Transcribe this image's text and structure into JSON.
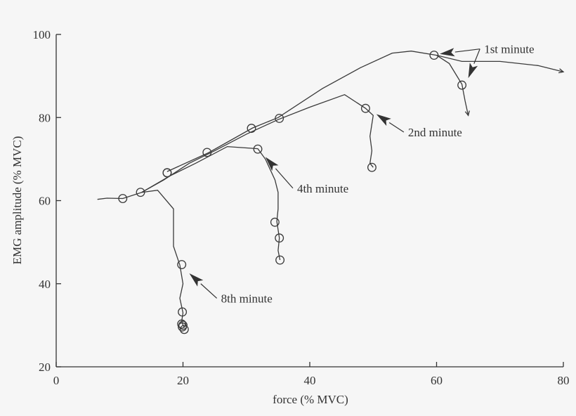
{
  "chart_data": {
    "type": "line",
    "xlabel": "force (% MVC)",
    "ylabel": "EMG amplitude (% MVC)",
    "xlim": [
      0,
      80
    ],
    "ylim": [
      20,
      100
    ],
    "xticks": [
      0,
      20,
      40,
      60,
      80
    ],
    "yticks": [
      20,
      40,
      60,
      80,
      100
    ],
    "series": [
      {
        "name": "1st minute",
        "points": [
          [
            17.5,
            67
          ],
          [
            24,
            71.5
          ],
          [
            31,
            77.5
          ],
          [
            35,
            80
          ],
          [
            42,
            87
          ],
          [
            48,
            92
          ],
          [
            53,
            95.5
          ],
          [
            56,
            96
          ],
          [
            60,
            95
          ],
          [
            64,
            93.5
          ],
          [
            70,
            93.5
          ],
          [
            76,
            92.5
          ],
          [
            80,
            91
          ]
        ],
        "markers": [
          [
            17.5,
            66.7
          ],
          [
            23.8,
            71.6
          ],
          [
            30.8,
            77.4
          ],
          [
            35.2,
            79.8
          ],
          [
            59.6,
            95
          ],
          [
            64,
            87.8
          ]
        ]
      },
      {
        "name": "1st minute (fatiguing branch)",
        "points": [
          [
            60,
            95
          ],
          [
            62,
            93
          ],
          [
            64,
            88
          ],
          [
            64.5,
            84
          ],
          [
            65,
            80.5
          ]
        ],
        "markers": []
      },
      {
        "name": "2nd minute",
        "points": [
          [
            13.5,
            62
          ],
          [
            17,
            65
          ],
          [
            21,
            69
          ],
          [
            25,
            72
          ],
          [
            30,
            76
          ],
          [
            35,
            79.5
          ],
          [
            40,
            82.5
          ],
          [
            45.5,
            85.5
          ],
          [
            48.8,
            82.2
          ],
          [
            50,
            80.5
          ],
          [
            49.5,
            75.5
          ],
          [
            49.8,
            72
          ],
          [
            49.5,
            69
          ],
          [
            50,
            68
          ]
        ],
        "markers": [
          [
            48.8,
            82.2
          ],
          [
            49.8,
            68
          ]
        ]
      },
      {
        "name": "4th minute",
        "points": [
          [
            13.5,
            62
          ],
          [
            18,
            66
          ],
          [
            22,
            69
          ],
          [
            27,
            73
          ],
          [
            31.8,
            72.5
          ],
          [
            33,
            70
          ],
          [
            34.5,
            65
          ],
          [
            35,
            62
          ],
          [
            35,
            58
          ],
          [
            34.8,
            55
          ],
          [
            35.2,
            51
          ],
          [
            35,
            48
          ],
          [
            35.3,
            45.7
          ]
        ],
        "markers": [
          [
            31.8,
            72.4
          ],
          [
            34.5,
            54.8
          ],
          [
            35.2,
            51
          ],
          [
            35.3,
            45.7
          ]
        ]
      },
      {
        "name": "8th minute",
        "points": [
          [
            6.5,
            60.3
          ],
          [
            8,
            60.6
          ],
          [
            10.5,
            60.5
          ],
          [
            13.5,
            62
          ],
          [
            16,
            62.5
          ],
          [
            18.5,
            58
          ],
          [
            18.5,
            49
          ],
          [
            19.5,
            44.5
          ],
          [
            20,
            40
          ],
          [
            19.5,
            36.5
          ],
          [
            20,
            33
          ],
          [
            19.8,
            31
          ],
          [
            20,
            30
          ],
          [
            20.2,
            29.5
          ]
        ],
        "markers": [
          [
            10.5,
            60.5
          ],
          [
            13.3,
            62
          ],
          [
            17.5,
            66.7
          ],
          [
            19.8,
            44.6
          ],
          [
            19.9,
            33.2
          ],
          [
            19.8,
            30.3
          ],
          [
            20,
            30
          ],
          [
            19.9,
            29.6
          ],
          [
            20.2,
            29
          ]
        ]
      }
    ],
    "annotations": [
      {
        "text": "1st minute",
        "x": 67.5,
        "y": 96.5,
        "arrows_to": [
          [
            60.5,
            95.3
          ],
          [
            65,
            89.5
          ]
        ]
      },
      {
        "text": "2nd minute",
        "x": 55.5,
        "y": 76.5,
        "arrows_to": [
          [
            50.5,
            80.8
          ]
        ]
      },
      {
        "text": "4th minute",
        "x": 38,
        "y": 63,
        "arrows_to": [
          [
            33,
            70.5
          ]
        ]
      },
      {
        "text": "8th minute",
        "x": 26,
        "y": 36.5,
        "arrows_to": [
          [
            21,
            42.5
          ]
        ]
      }
    ]
  }
}
